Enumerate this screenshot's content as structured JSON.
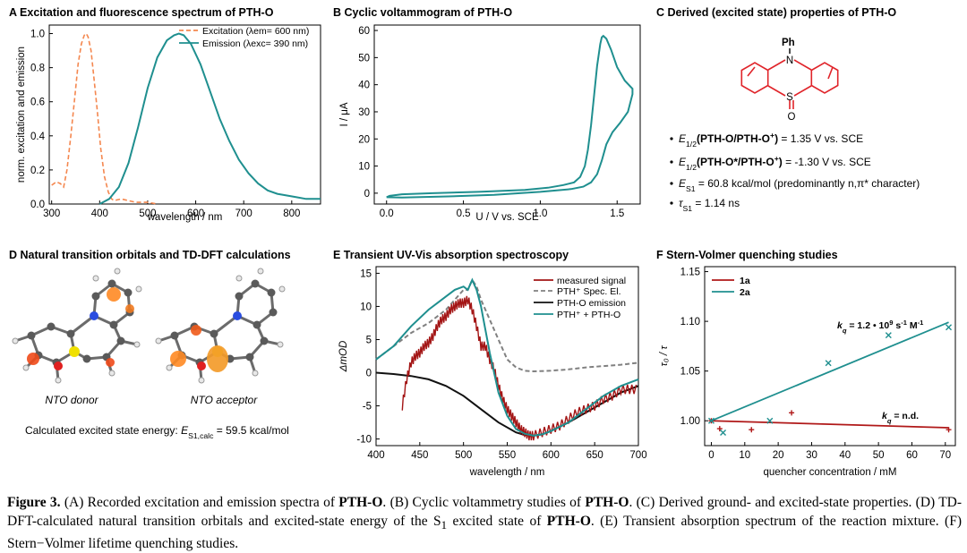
{
  "chart_data": [
    {
      "id": "A",
      "type": "line",
      "title": "A  Excitation and fluorescence spectrum of PTH-O",
      "xlabel": "wavelength / nm",
      "ylabel": "norm. excitation and emission",
      "xlim": [
        295,
        860
      ],
      "ylim": [
        0,
        1.05
      ],
      "xticks": [
        "300",
        "400",
        "500",
        "600",
        "700",
        "800"
      ],
      "yticks": [
        "0.0",
        "0.2",
        "0.4",
        "0.6",
        "0.8",
        "1.0"
      ],
      "legend_position": "top-right",
      "series": [
        {
          "name": "Excitation (λem= 600 nm)",
          "color": "#f4874f",
          "style": "dashed",
          "x": [
            300,
            310,
            318,
            325,
            332,
            340,
            348,
            355,
            362,
            368,
            372,
            376,
            382,
            388,
            395,
            402,
            410,
            418,
            425,
            430,
            445,
            460,
            475,
            500,
            520
          ],
          "y": [
            0.11,
            0.13,
            0.12,
            0.1,
            0.2,
            0.4,
            0.62,
            0.82,
            0.94,
            0.99,
            1.0,
            0.98,
            0.9,
            0.74,
            0.55,
            0.33,
            0.16,
            0.07,
            0.03,
            0.02,
            0.03,
            0.02,
            0.01,
            0.01,
            0.0
          ]
        },
        {
          "name": "Emission (λexc= 390 nm)",
          "color": "#1f8f8f",
          "style": "solid",
          "x": [
            400,
            420,
            440,
            460,
            480,
            500,
            520,
            540,
            555,
            565,
            575,
            590,
            610,
            630,
            650,
            670,
            690,
            710,
            730,
            750,
            770,
            790,
            810,
            830,
            860
          ],
          "y": [
            0.0,
            0.03,
            0.1,
            0.24,
            0.45,
            0.68,
            0.86,
            0.96,
            0.99,
            1.0,
            0.99,
            0.94,
            0.82,
            0.66,
            0.5,
            0.37,
            0.26,
            0.18,
            0.12,
            0.08,
            0.06,
            0.05,
            0.04,
            0.03,
            0.03
          ]
        }
      ]
    },
    {
      "id": "B",
      "type": "line",
      "title": "B  Cyclic voltammogram of PTH-O",
      "xlabel": "U / V vs. SCE",
      "ylabel": "I / μA",
      "xlim": [
        -0.08,
        1.65
      ],
      "ylim": [
        -4,
        62
      ],
      "xticks": [
        "0.0",
        "0.5",
        "1.0",
        "1.5"
      ],
      "yticks": [
        "0",
        "10",
        "20",
        "30",
        "40",
        "50",
        "60"
      ],
      "series": [
        {
          "name": "CV",
          "color": "#1f8f8f",
          "style": "solid",
          "x": [
            0.0,
            0.02,
            0.1,
            0.3,
            0.6,
            0.9,
            1.05,
            1.15,
            1.22,
            1.26,
            1.29,
            1.31,
            1.33,
            1.35,
            1.37,
            1.39,
            1.4,
            1.41,
            1.43,
            1.46,
            1.5,
            1.55,
            1.6,
            1.6,
            1.57,
            1.52,
            1.47,
            1.43,
            1.4,
            1.37,
            1.33,
            1.28,
            1.2,
            1.0,
            0.7,
            0.4,
            0.1,
            0.0
          ],
          "y": [
            -1.5,
            -1.0,
            -0.4,
            0.0,
            0.5,
            1.2,
            2.0,
            3.0,
            4.0,
            6.0,
            10.0,
            16.0,
            25.0,
            36.0,
            47.0,
            55.0,
            57.5,
            58.0,
            57.0,
            53.0,
            46.5,
            41.5,
            38.5,
            36.5,
            30.0,
            26.0,
            22.5,
            18.0,
            12.0,
            7.0,
            4.0,
            2.4,
            1.5,
            0.5,
            -0.6,
            -1.2,
            -1.6,
            -1.5
          ]
        }
      ]
    },
    {
      "id": "C",
      "type": "table",
      "title": "C  Derived (excited state) properties of PTH-O",
      "structure_labels": [
        "Ph",
        "N",
        "S",
        "O"
      ],
      "properties": [
        {
          "symbol": "E",
          "sub": "1/2",
          "body": "(PTH-O/PTH-O",
          "sup": "+",
          "close": ")",
          "value": " = 1.35 V vs. SCE"
        },
        {
          "symbol": "E",
          "sub": "1/2",
          "body": "(PTH-O*/PTH-O",
          "sup": "+",
          "close": ")",
          "value": " = -1.30 V vs. SCE"
        },
        {
          "symbol": "E",
          "sub": "S1",
          "body": "",
          "sup": "",
          "close": "",
          "value": " = 60.8 kcal/mol (predominantly n,π* character)"
        },
        {
          "symbol": "τ",
          "sub": "S1",
          "body": "",
          "sup": "",
          "close": "",
          "value": " = 1.14 ns"
        }
      ]
    },
    {
      "id": "D",
      "type": "table",
      "title": "D  Natural transition orbitals and TD-DFT calculations",
      "labels": [
        "NTO donor",
        "NTO acceptor"
      ],
      "energy_prefix": "Calculated excited state energy: ",
      "energy_symbol": "E",
      "energy_sub": "S1,calc",
      "energy_value": " = 59.5 kcal/mol"
    },
    {
      "id": "E",
      "type": "line",
      "title": "E  Transient UV-Vis absorption spectroscopy",
      "xlabel": "wavelength / nm",
      "ylabel": "ΔmOD",
      "xlim": [
        400,
        700
      ],
      "ylim": [
        -11,
        16
      ],
      "xticks": [
        "400",
        "450",
        "500",
        "550",
        "600",
        "650",
        "700"
      ],
      "yticks": [
        "-10",
        "-5",
        "0",
        "5",
        "10",
        "15"
      ],
      "legend_position": "top-right",
      "series": [
        {
          "name": "measured signal",
          "color": "#a31515",
          "style": "solid",
          "x": [
            430,
            435,
            440,
            445,
            450,
            455,
            460,
            465,
            470,
            475,
            480,
            485,
            490,
            495,
            500,
            505,
            510,
            515,
            520,
            525,
            530,
            535,
            540,
            545,
            550,
            555,
            560,
            565,
            570,
            575,
            580,
            590,
            600,
            610,
            620,
            630,
            640,
            650,
            660,
            670,
            680,
            690,
            700
          ],
          "y": [
            -5.0,
            -1.0,
            1.5,
            2.5,
            3.0,
            4.0,
            4.5,
            5.5,
            7.0,
            8.0,
            8.5,
            9.5,
            10.0,
            10.5,
            10.5,
            11.0,
            9.5,
            7.0,
            4.0,
            4.0,
            2.0,
            0.5,
            -2.0,
            -4.0,
            -5.5,
            -6.5,
            -7.5,
            -8.5,
            -9.0,
            -9.5,
            -9.5,
            -9.0,
            -8.5,
            -8.0,
            -7.0,
            -6.0,
            -5.5,
            -5.0,
            -4.0,
            -3.5,
            -2.5,
            -2.5,
            -2.5
          ]
        },
        {
          "name": "PTH⁺ Spec. El.",
          "color": "#808080",
          "style": "dashed",
          "x": [
            400,
            420,
            440,
            460,
            470,
            480,
            490,
            500,
            505,
            510,
            515,
            520,
            525,
            530,
            540,
            550,
            560,
            570,
            580,
            600,
            620,
            640,
            660,
            680,
            700
          ],
          "y": [
            2.0,
            4.0,
            6.0,
            7.5,
            8.5,
            9.5,
            11.0,
            12.5,
            12.5,
            14.0,
            13.0,
            11.0,
            9.5,
            8.0,
            5.0,
            2.0,
            0.8,
            0.3,
            0.2,
            0.3,
            0.5,
            0.8,
            1.0,
            1.2,
            1.5
          ]
        },
        {
          "name": "PTH-O emission",
          "color": "#111111",
          "style": "solid",
          "x": [
            400,
            420,
            440,
            460,
            480,
            500,
            520,
            540,
            560,
            570,
            580,
            590,
            600,
            620,
            640,
            660,
            680,
            700
          ],
          "y": [
            0.0,
            -0.2,
            -0.5,
            -1.0,
            -2.0,
            -3.5,
            -5.5,
            -7.5,
            -9.0,
            -9.4,
            -9.5,
            -9.3,
            -8.8,
            -7.5,
            -6.0,
            -4.5,
            -3.0,
            -2.0
          ]
        },
        {
          "name": "PTH⁺ + PTH-O",
          "color": "#1f8f8f",
          "style": "solid",
          "x": [
            400,
            420,
            440,
            460,
            470,
            480,
            490,
            500,
            505,
            510,
            515,
            520,
            525,
            530,
            540,
            550,
            560,
            570,
            580,
            590,
            600,
            620,
            640,
            660,
            680,
            700
          ],
          "y": [
            2.0,
            4.0,
            7.0,
            9.5,
            10.5,
            11.5,
            12.5,
            13.0,
            12.5,
            14.0,
            12.5,
            10.0,
            6.5,
            3.0,
            -3.0,
            -6.5,
            -8.5,
            -9.2,
            -9.5,
            -9.3,
            -8.8,
            -7.5,
            -5.5,
            -3.5,
            -2.0,
            -1.0
          ]
        }
      ]
    },
    {
      "id": "F",
      "type": "scatter",
      "title": "F  Stern-Volmer quenching studies",
      "xlabel": "quencher concentration / mM",
      "ylabel": "τ₀ / τ",
      "xlim": [
        -2,
        73
      ],
      "ylim": [
        0.975,
        1.155
      ],
      "xticks": [
        "0",
        "10",
        "20",
        "30",
        "40",
        "50",
        "60",
        "70"
      ],
      "yticks": [
        "1.00",
        "1.05",
        "1.10",
        "1.15"
      ],
      "legend_position": "top-left",
      "annotations": [
        "k_q = 1.2 • 10^9 s^-1 M^-1",
        "k_q = n.d."
      ],
      "series": [
        {
          "name": "1a",
          "color": "#b01818",
          "marker": "+",
          "x": [
            0,
            2.5,
            12,
            24,
            71
          ],
          "y": [
            1.0,
            0.992,
            0.991,
            1.008,
            0.991
          ],
          "fit": {
            "x": [
              0,
              71
            ],
            "y": [
              1.0,
              0.993
            ]
          }
        },
        {
          "name": "2a",
          "color": "#1f8f8f",
          "marker": "x",
          "x": [
            0,
            3.5,
            17.5,
            35,
            53,
            71
          ],
          "y": [
            1.0,
            0.988,
            1.0,
            1.058,
            1.086,
            1.094
          ],
          "fit": {
            "x": [
              0,
              71
            ],
            "y": [
              1.0,
              1.099
            ]
          }
        }
      ]
    }
  ],
  "caption": {
    "label": "Figure 3.",
    "parts": [
      {
        "t": " (A) Recorded excitation and emission spectra of ",
        "b": false
      },
      {
        "t": "PTH-O",
        "b": true
      },
      {
        "t": ". (B) Cyclic voltammetry studies of ",
        "b": false
      },
      {
        "t": "PTH-O",
        "b": true
      },
      {
        "t": ". (C) Derived ground- and excited-state properties. (D) TD-DFT-calculated natural transition orbitals and excited-state energy of the S",
        "b": false
      },
      {
        "t": "1",
        "b": false,
        "sub": true
      },
      {
        "t": " excited state of ",
        "b": false
      },
      {
        "t": "PTH-O",
        "b": true
      },
      {
        "t": ". (E) Transient absorption spectrum of the reaction mixture. (F) Stern−Volmer lifetime quenching studies.",
        "b": false
      }
    ]
  }
}
